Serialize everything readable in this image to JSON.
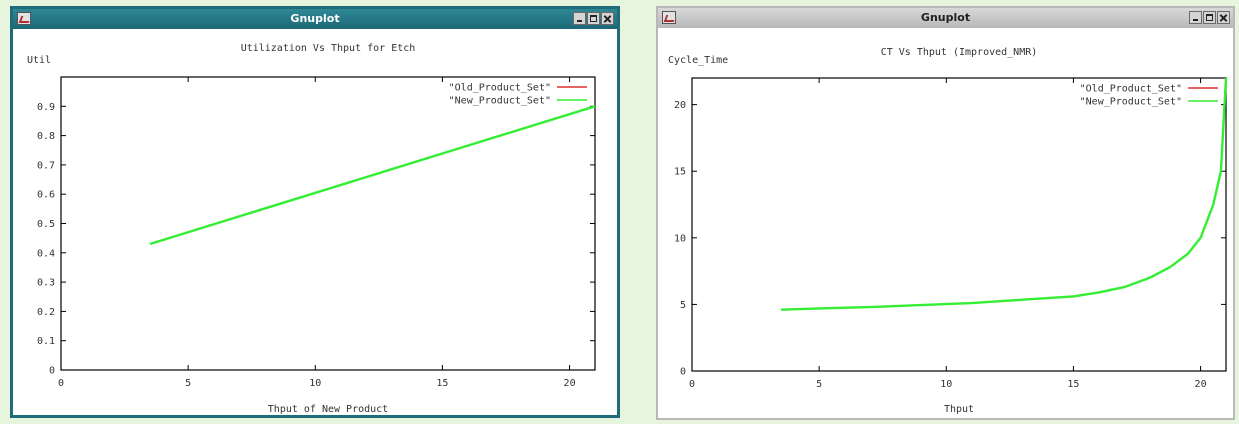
{
  "colors": {
    "desktop": "#e7f5df",
    "active_titlebar": "#1f6c78",
    "inactive_titlebar": "#c4c4c4",
    "series_old": "#e03030",
    "series_new": "#33ee33"
  },
  "windows": [
    {
      "title": "Gnuplot",
      "active": true,
      "buttons": [
        "minimize-icon",
        "maximize-icon",
        "close-icon"
      ]
    },
    {
      "title": "Gnuplot",
      "active": false,
      "buttons": [
        "minimize-icon",
        "maximize-icon",
        "close-icon"
      ]
    }
  ],
  "chart_data": [
    {
      "type": "line",
      "title": "Utilization Vs Thput for Etch",
      "xlabel": "Thput of New Product",
      "ylabel": "Util",
      "xlim": [
        0,
        21
      ],
      "ylim": [
        0,
        1
      ],
      "x_ticks": [
        "0",
        "5",
        "10",
        "15",
        "20"
      ],
      "y_ticks": [
        "0",
        "0.1",
        "0.2",
        "0.3",
        "0.4",
        "0.5",
        "0.6",
        "0.7",
        "0.8",
        "0.9"
      ],
      "grid": false,
      "legend_position": "top-right",
      "series": [
        {
          "name": "\"Old_Product_Set\"",
          "color": "#e03030",
          "points": []
        },
        {
          "name": "\"New_Product_Set\"",
          "color": "#33ee33",
          "points": [
            [
              3.5,
              0.43
            ],
            [
              21,
              0.9
            ]
          ]
        }
      ]
    },
    {
      "type": "line",
      "title": "CT Vs Thput (Improved_NMR)",
      "xlabel": "Thput",
      "ylabel": "Cycle_Time",
      "xlim": [
        0,
        21
      ],
      "ylim": [
        0,
        22
      ],
      "x_ticks": [
        "0",
        "5",
        "10",
        "15",
        "20"
      ],
      "y_ticks": [
        "0",
        "5",
        "10",
        "15",
        "20"
      ],
      "grid": false,
      "legend_position": "top-right",
      "series": [
        {
          "name": "\"Old_Product_Set\"",
          "color": "#e03030",
          "points": []
        },
        {
          "name": "\"New_Product_Set\"",
          "color": "#33ee33",
          "points": [
            [
              3.5,
              4.6
            ],
            [
              5,
              4.7
            ],
            [
              7,
              4.8
            ],
            [
              9,
              4.95
            ],
            [
              11,
              5.1
            ],
            [
              13,
              5.35
            ],
            [
              15,
              5.6
            ],
            [
              16,
              5.9
            ],
            [
              17,
              6.3
            ],
            [
              18,
              7.0
            ],
            [
              18.8,
              7.8
            ],
            [
              19.5,
              8.8
            ],
            [
              20,
              10.0
            ],
            [
              20.5,
              12.5
            ],
            [
              20.8,
              15.0
            ],
            [
              21,
              22.0
            ]
          ]
        }
      ]
    }
  ]
}
